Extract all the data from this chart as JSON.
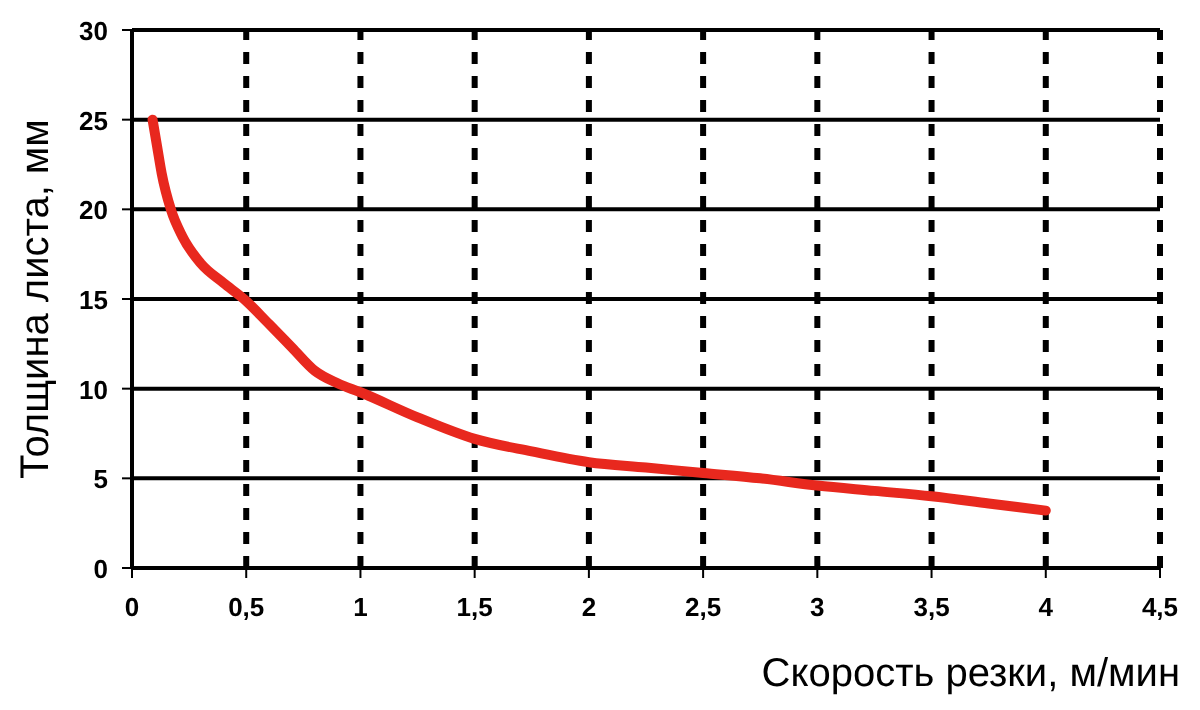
{
  "chart_data": {
    "type": "line",
    "xlabel": "Скорость резки, м/мин",
    "ylabel": "Толщина листа, мм",
    "x": [
      0.09,
      0.11,
      0.13,
      0.17,
      0.22,
      0.3,
      0.4,
      0.49,
      0.6,
      0.7,
      0.8,
      0.9,
      1,
      1.25,
      1.5,
      1.75,
      2,
      2.25,
      2.5,
      2.75,
      3,
      3.25,
      3.5,
      3.75,
      4
    ],
    "series": [
      {
        "color": "#e8281e",
        "values": [
          25,
          23.5,
          22,
          20,
          18.5,
          17,
          15.9,
          15,
          13.6,
          12.3,
          11,
          10.3,
          9.8,
          8.4,
          7.2,
          6.5,
          5.9,
          5.6,
          5.3,
          5,
          4.6,
          4.3,
          4,
          3.6,
          3.2
        ]
      }
    ],
    "xlim": [
      0,
      4.5
    ],
    "ylim": [
      0,
      30
    ],
    "xticks": [
      0,
      {
        "value": 0.5,
        "label": "0,5"
      },
      1,
      {
        "value": 1.5,
        "label": "1,5"
      },
      2,
      {
        "value": 2.5,
        "label": "2,5"
      },
      3,
      {
        "value": 3.5,
        "label": "3,5"
      },
      4,
      {
        "value": 4.5,
        "label": "4,5"
      }
    ],
    "yticks": [
      0,
      5,
      10,
      15,
      20,
      25,
      30
    ],
    "grid": true,
    "marker": "none",
    "line_style": "solid"
  }
}
